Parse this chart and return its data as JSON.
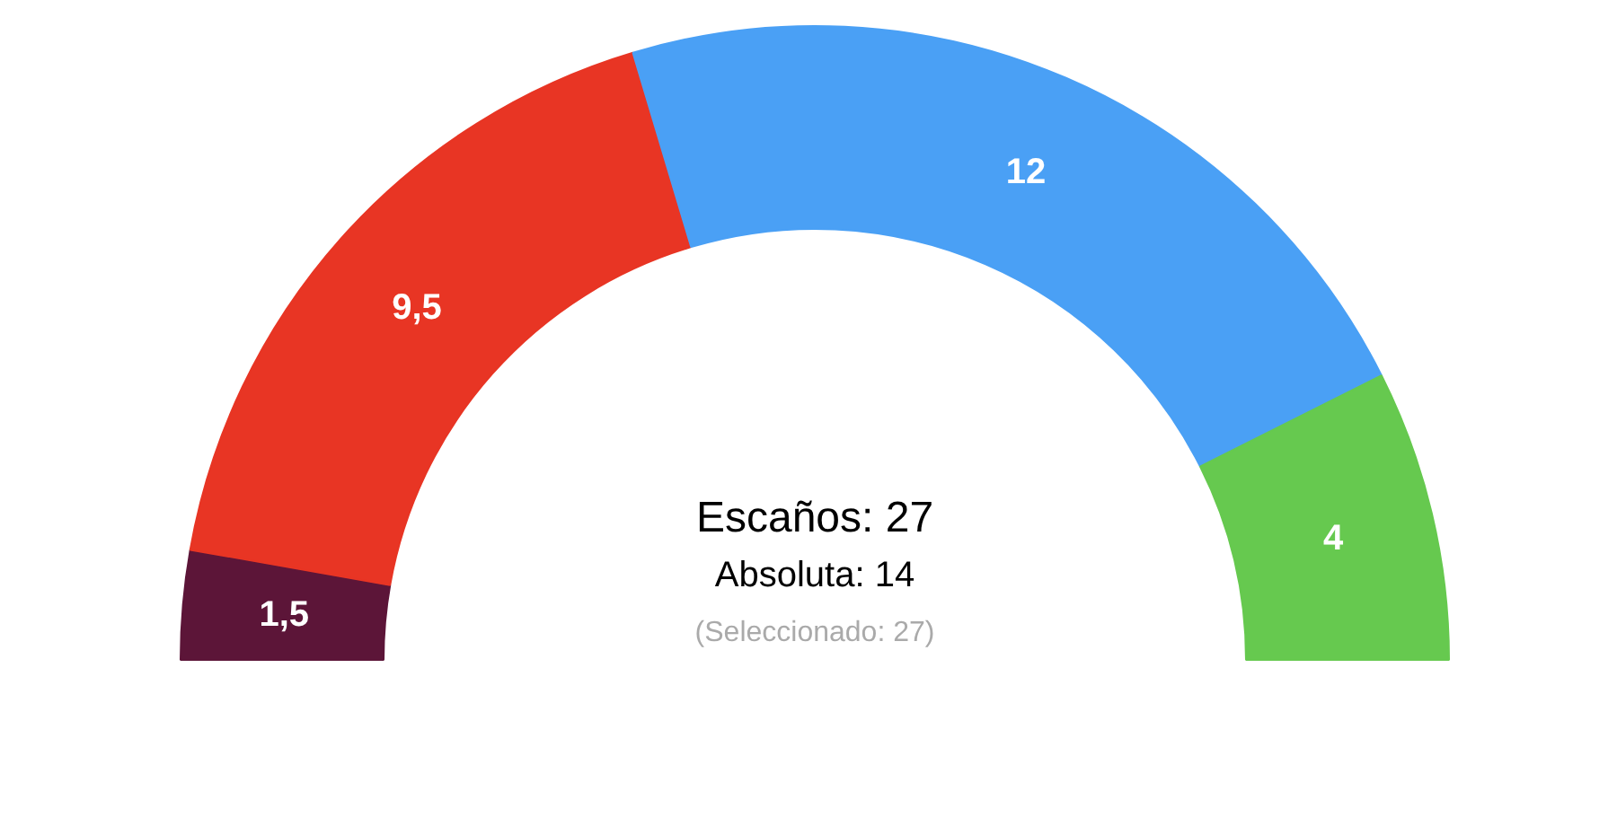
{
  "chart_data": {
    "type": "donut",
    "categories": [
      null,
      null,
      null,
      null
    ],
    "values": [
      1.5,
      9.5,
      12,
      4
    ],
    "colors": [
      "#5c1538",
      "#e83524",
      "#4aa0f5",
      "#66c94f"
    ],
    "value_labels": [
      "1,5",
      "9,5",
      "12",
      "4"
    ],
    "annotations": [
      "Escaños: 27",
      "Absoluta: 14",
      "(Seleccionado: 27)"
    ]
  }
}
